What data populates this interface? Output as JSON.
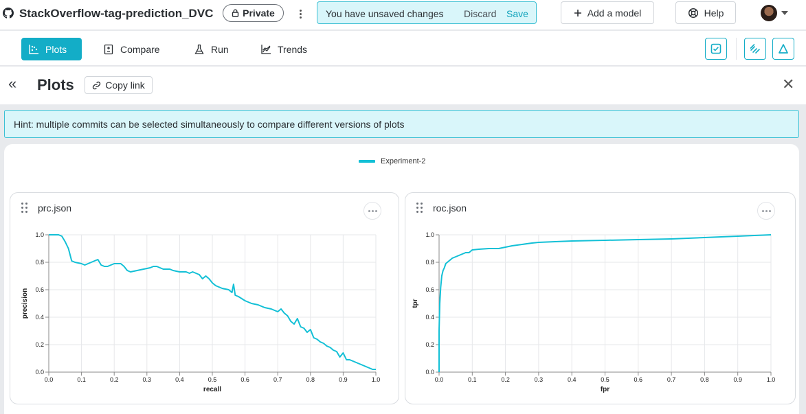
{
  "header": {
    "repo_name": "StackOverflow-tag-prediction_DVC",
    "private_label": "Private",
    "unsaved_message": "You have unsaved changes",
    "discard_label": "Discard",
    "save_label": "Save",
    "add_model_label": "Add a model",
    "help_label": "Help"
  },
  "tabs": [
    {
      "label": "Plots",
      "active": true,
      "icon": "scatter-plot-icon"
    },
    {
      "label": "Compare",
      "active": false,
      "icon": "compare-icon"
    },
    {
      "label": "Run",
      "active": false,
      "icon": "flask-icon"
    },
    {
      "label": "Trends",
      "active": false,
      "icon": "trends-icon"
    }
  ],
  "toolbar_icons": [
    "checkbox-icon",
    "link-icon",
    "delta-icon"
  ],
  "plots_header": {
    "title": "Plots",
    "copy_link_label": "Copy link"
  },
  "hint": "Hint: multiple commits can be selected simultaneously to compare different versions of plots",
  "legend": {
    "label": "Experiment-2",
    "color": "#13c0d6"
  },
  "accent_color": "#13adc7",
  "chart_data": [
    {
      "type": "line",
      "title": "prc.json",
      "xlabel": "recall",
      "ylabel": "precision",
      "xlim": [
        0,
        1
      ],
      "ylim": [
        0,
        1
      ],
      "xticks": [
        "0.0",
        "0.1",
        "0.2",
        "0.3",
        "0.4",
        "0.5",
        "0.6",
        "0.7",
        "0.8",
        "0.9",
        "1.0"
      ],
      "yticks": [
        "0.0",
        "0.2",
        "0.4",
        "0.6",
        "0.8",
        "1.0"
      ],
      "grid": true,
      "series": [
        {
          "name": "Experiment-2",
          "color": "#13c0d6",
          "x": [
            0.0,
            0.03,
            0.04,
            0.05,
            0.06,
            0.07,
            0.08,
            0.1,
            0.11,
            0.12,
            0.13,
            0.14,
            0.15,
            0.16,
            0.17,
            0.18,
            0.19,
            0.2,
            0.21,
            0.22,
            0.23,
            0.24,
            0.25,
            0.27,
            0.29,
            0.31,
            0.32,
            0.33,
            0.34,
            0.35,
            0.37,
            0.38,
            0.4,
            0.42,
            0.43,
            0.44,
            0.45,
            0.46,
            0.47,
            0.48,
            0.49,
            0.5,
            0.51,
            0.52,
            0.53,
            0.55,
            0.56,
            0.565,
            0.57,
            0.58,
            0.6,
            0.62,
            0.64,
            0.66,
            0.68,
            0.7,
            0.71,
            0.72,
            0.73,
            0.74,
            0.75,
            0.76,
            0.77,
            0.78,
            0.79,
            0.8,
            0.81,
            0.82,
            0.83,
            0.84,
            0.85,
            0.86,
            0.87,
            0.88,
            0.89,
            0.9,
            0.91,
            0.92,
            0.93,
            0.94,
            0.95,
            0.96,
            0.97,
            0.98,
            0.99,
            1.0
          ],
          "y": [
            1.0,
            1.0,
            0.99,
            0.95,
            0.9,
            0.81,
            0.8,
            0.79,
            0.78,
            0.79,
            0.8,
            0.81,
            0.82,
            0.78,
            0.77,
            0.77,
            0.78,
            0.79,
            0.79,
            0.79,
            0.77,
            0.74,
            0.73,
            0.74,
            0.75,
            0.76,
            0.77,
            0.77,
            0.76,
            0.75,
            0.75,
            0.74,
            0.73,
            0.73,
            0.72,
            0.73,
            0.72,
            0.71,
            0.68,
            0.7,
            0.68,
            0.65,
            0.63,
            0.62,
            0.61,
            0.6,
            0.58,
            0.64,
            0.56,
            0.55,
            0.52,
            0.5,
            0.49,
            0.47,
            0.46,
            0.44,
            0.46,
            0.43,
            0.41,
            0.37,
            0.35,
            0.39,
            0.33,
            0.32,
            0.29,
            0.31,
            0.25,
            0.24,
            0.22,
            0.21,
            0.19,
            0.18,
            0.16,
            0.15,
            0.11,
            0.14,
            0.09,
            0.09,
            0.08,
            0.07,
            0.06,
            0.05,
            0.04,
            0.03,
            0.02,
            0.02
          ]
        }
      ]
    },
    {
      "type": "line",
      "title": "roc.json",
      "xlabel": "fpr",
      "ylabel": "tpr",
      "xlim": [
        0,
        1
      ],
      "ylim": [
        0,
        1
      ],
      "xticks": [
        "0.0",
        "0.1",
        "0.2",
        "0.3",
        "0.4",
        "0.5",
        "0.6",
        "0.7",
        "0.8",
        "0.9",
        "1.0"
      ],
      "yticks": [
        "0.0",
        "0.2",
        "0.4",
        "0.6",
        "0.8",
        "1.0"
      ],
      "grid": true,
      "series": [
        {
          "name": "Experiment-2",
          "color": "#13c0d6",
          "x": [
            0.0,
            0.0,
            0.002,
            0.005,
            0.008,
            0.012,
            0.016,
            0.02,
            0.025,
            0.03,
            0.035,
            0.04,
            0.05,
            0.06,
            0.07,
            0.08,
            0.09,
            0.1,
            0.12,
            0.15,
            0.18,
            0.2,
            0.22,
            0.25,
            0.28,
            0.3,
            0.35,
            0.4,
            0.5,
            0.6,
            0.7,
            0.8,
            0.9,
            1.0
          ],
          "y": [
            0.0,
            0.3,
            0.5,
            0.62,
            0.7,
            0.74,
            0.76,
            0.79,
            0.8,
            0.81,
            0.82,
            0.83,
            0.84,
            0.85,
            0.86,
            0.87,
            0.87,
            0.89,
            0.895,
            0.9,
            0.9,
            0.91,
            0.92,
            0.93,
            0.94,
            0.945,
            0.95,
            0.955,
            0.96,
            0.965,
            0.97,
            0.98,
            0.99,
            1.0
          ]
        }
      ]
    }
  ]
}
